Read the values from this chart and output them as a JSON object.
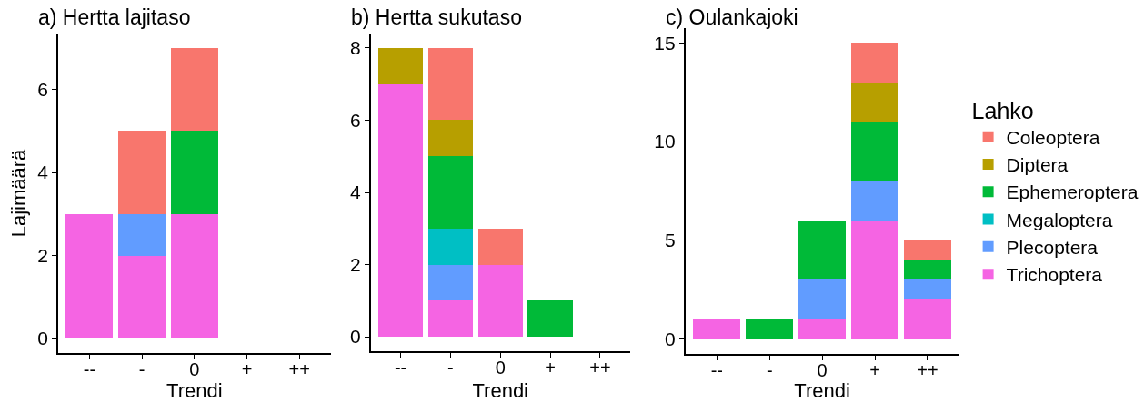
{
  "chart_data": [
    {
      "type": "bar",
      "stacked": true,
      "title": "a) Hertta lajitaso",
      "xlabel": "Trendi",
      "ylabel": "Lajimäärä",
      "categories": [
        "--",
        "-",
        "0",
        "+",
        "++"
      ],
      "series": [
        {
          "color": "#f564e3",
          "values": [
            3,
            2,
            3,
            0,
            0
          ]
        },
        {
          "color": "#619cff",
          "values": [
            0,
            1,
            0,
            0,
            0
          ]
        },
        {
          "color": "#00ba38",
          "values": [
            0,
            0,
            2,
            0,
            0
          ]
        },
        {
          "color": "#f8766d",
          "values": [
            0,
            2,
            2,
            0,
            0
          ]
        }
      ],
      "ylim": [
        -0.35,
        7.35
      ],
      "yticks": [
        0,
        2,
        4,
        6
      ]
    },
    {
      "type": "bar",
      "stacked": true,
      "title": "b) Hertta sukutaso",
      "xlabel": "Trendi",
      "categories": [
        "--",
        "-",
        "0",
        "+",
        "++"
      ],
      "series": [
        {
          "color": "#f564e3",
          "values": [
            7,
            1,
            2,
            0,
            0
          ]
        },
        {
          "color": "#619cff",
          "values": [
            0,
            1,
            0,
            0,
            0
          ]
        },
        {
          "color": "#00bfc4",
          "values": [
            0,
            1,
            0,
            0,
            0
          ]
        },
        {
          "color": "#00ba38",
          "values": [
            0,
            2,
            0,
            1,
            0
          ]
        },
        {
          "color": "#b79f00",
          "values": [
            1,
            1,
            0,
            0,
            0
          ]
        },
        {
          "color": "#f8766d",
          "values": [
            0,
            2,
            1,
            0,
            0
          ]
        }
      ],
      "ylim": [
        -0.4,
        8.4
      ],
      "yticks": [
        0,
        2,
        4,
        6,
        8
      ]
    },
    {
      "type": "bar",
      "stacked": true,
      "title": "c) Oulankajoki",
      "xlabel": "Trendi",
      "categories": [
        "--",
        "-",
        "0",
        "+",
        "++"
      ],
      "series": [
        {
          "name": "Trichoptera",
          "color": "#f564e3",
          "values": [
            1,
            0,
            1,
            6,
            2
          ]
        },
        {
          "name": "Plecoptera",
          "color": "#619cff",
          "values": [
            0,
            0,
            2,
            2,
            1
          ]
        },
        {
          "name": "Megaloptera",
          "color": "#00bfc4",
          "values": [
            0,
            0,
            0,
            0,
            0
          ]
        },
        {
          "name": "Ephemeroptera",
          "color": "#00ba38",
          "values": [
            0,
            1,
            3,
            3,
            1
          ]
        },
        {
          "name": "Diptera",
          "color": "#b79f00",
          "values": [
            0,
            0,
            0,
            2,
            0
          ]
        },
        {
          "name": "Coleoptera",
          "color": "#f8766d",
          "values": [
            0,
            0,
            0,
            2,
            1
          ]
        }
      ],
      "ylim": [
        -0.75,
        15.75
      ],
      "yticks": [
        0,
        5,
        10,
        15
      ],
      "legend": "right",
      "legend_title": "Lahko"
    }
  ]
}
